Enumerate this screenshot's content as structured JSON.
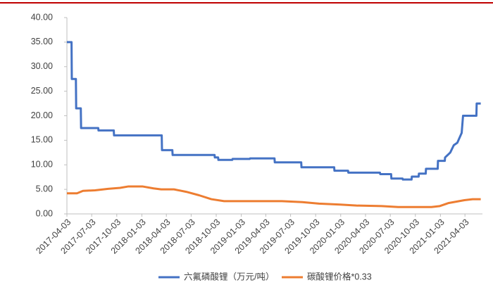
{
  "chart_data": {
    "type": "line",
    "ylim": [
      0,
      40
    ],
    "yticks": [
      {
        "value": 0,
        "label": "0.00"
      },
      {
        "value": 5,
        "label": "5.00"
      },
      {
        "value": 10,
        "label": "10.00"
      },
      {
        "value": 15,
        "label": "15.00"
      },
      {
        "value": 20,
        "label": "20.00"
      },
      {
        "value": 25,
        "label": "25.00"
      },
      {
        "value": 30,
        "label": "30.00"
      },
      {
        "value": 35,
        "label": "35.00"
      },
      {
        "value": 40,
        "label": "40.00"
      }
    ],
    "xlim": [
      "2017-04-03",
      "2021-06-01"
    ],
    "xticks": [
      "2017-04-03",
      "2017-07-03",
      "2017-10-03",
      "2018-01-03",
      "2018-04-03",
      "2018-07-03",
      "2018-10-03",
      "2019-01-03",
      "2019-04-03",
      "2019-07-03",
      "2019-10-03",
      "2020-01-03",
      "2020-04-03",
      "2020-07-03",
      "2020-10-03",
      "2021-01-03",
      "2021-04-03"
    ],
    "legend": "bottom",
    "series": [
      {
        "name": "六氟磷酸锂（万元/吨）",
        "color": "#4472c4",
        "x": [
          "2017-04-03",
          "2017-04-20",
          "2017-04-21",
          "2017-05-06",
          "2017-05-07",
          "2017-05-24",
          "2017-05-25",
          "2017-07-27",
          "2017-07-28",
          "2017-09-22",
          "2017-09-23",
          "2018-03-17",
          "2018-03-18",
          "2018-04-25",
          "2018-04-26",
          "2018-09-27",
          "2018-09-28",
          "2018-10-10",
          "2018-10-11",
          "2018-12-01",
          "2018-12-02",
          "2019-02-03",
          "2019-02-04",
          "2019-05-05",
          "2019-05-06",
          "2019-08-11",
          "2019-08-12",
          "2019-12-10",
          "2019-12-11",
          "2020-01-30",
          "2020-01-31",
          "2020-05-26",
          "2020-05-27",
          "2020-07-06",
          "2020-07-07",
          "2020-08-17",
          "2020-08-18",
          "2020-09-19",
          "2020-09-20",
          "2020-10-15",
          "2020-10-16",
          "2020-11-10",
          "2020-11-11",
          "2020-12-24",
          "2020-12-25",
          "2021-01-19",
          "2021-01-20",
          "2021-02-08",
          "2021-02-21",
          "2021-03-06",
          "2021-03-22",
          "2021-03-27",
          "2021-05-15",
          "2021-05-16",
          "2021-05-31"
        ],
        "values": [
          35,
          35,
          27.5,
          27.5,
          21.5,
          21.5,
          17.5,
          17.5,
          17,
          17,
          16,
          16,
          13,
          13,
          12,
          12,
          11.5,
          11.5,
          11,
          11,
          11.2,
          11.2,
          11.3,
          11.3,
          10.5,
          10.5,
          9.5,
          9.5,
          8.8,
          8.8,
          8.4,
          8.4,
          8.1,
          8.1,
          7.2,
          7.2,
          7,
          7,
          7.6,
          7.6,
          8.2,
          8.2,
          9.2,
          9.2,
          10.8,
          10.8,
          11.5,
          12.5,
          14,
          14.5,
          16.5,
          20,
          20,
          22.5,
          22.5
        ]
      },
      {
        "name": "碳酸锂价格*0.33",
        "color": "#ed7d31",
        "x": [
          "2017-04-03",
          "2017-05-10",
          "2017-06-01",
          "2017-07-15",
          "2017-09-01",
          "2017-10-15",
          "2017-11-15",
          "2018-01-05",
          "2018-02-15",
          "2018-03-15",
          "2018-05-01",
          "2018-06-15",
          "2018-08-01",
          "2018-09-15",
          "2018-11-01",
          "2019-06-01",
          "2019-08-15",
          "2019-10-15",
          "2020-01-01",
          "2020-03-01",
          "2020-06-01",
          "2020-08-01",
          "2020-12-01",
          "2021-01-01",
          "2021-02-01",
          "2021-04-01",
          "2021-05-01",
          "2021-05-31"
        ],
        "values": [
          4.2,
          4.2,
          4.7,
          4.8,
          5.1,
          5.3,
          5.6,
          5.6,
          5.2,
          5.0,
          5.0,
          4.5,
          3.8,
          3.0,
          2.6,
          2.6,
          2.4,
          2.1,
          1.9,
          1.7,
          1.6,
          1.4,
          1.4,
          1.6,
          2.2,
          2.8,
          3.0,
          3.0
        ]
      }
    ]
  }
}
